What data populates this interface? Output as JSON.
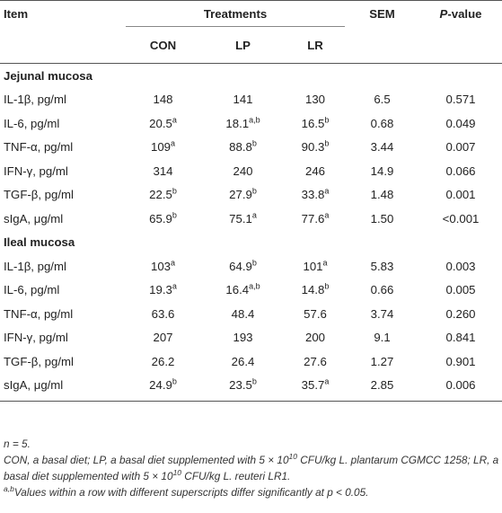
{
  "header": {
    "item": "Item",
    "treatments": "Treatments",
    "sem": "SEM",
    "p_prefix": "P",
    "p_suffix": "-value",
    "con": "CON",
    "lp": "LP",
    "lr": "LR"
  },
  "sections": [
    {
      "title": "Jejunal mucosa",
      "rows": [
        {
          "item": "IL-1β, pg/ml",
          "con": "148",
          "con_sup": "",
          "lp": "141",
          "lp_sup": "",
          "lr": "130",
          "lr_sup": "",
          "sem": "6.5",
          "p": "0.571"
        },
        {
          "item": "IL-6, pg/ml",
          "con": "20.5",
          "con_sup": "a",
          "lp": "18.1",
          "lp_sup": "a,b",
          "lr": "16.5",
          "lr_sup": "b",
          "sem": "0.68",
          "p": "0.049"
        },
        {
          "item": "TNF-α, pg/ml",
          "con": "109",
          "con_sup": "a",
          "lp": "88.8",
          "lp_sup": "b",
          "lr": "90.3",
          "lr_sup": "b",
          "sem": "3.44",
          "p": "0.007"
        },
        {
          "item": "IFN-γ, pg/ml",
          "con": "314",
          "con_sup": "",
          "lp": "240",
          "lp_sup": "",
          "lr": "246",
          "lr_sup": "",
          "sem": "14.9",
          "p": "0.066"
        },
        {
          "item": "TGF-β, pg/ml",
          "con": "22.5",
          "con_sup": "b",
          "lp": "27.9",
          "lp_sup": "b",
          "lr": "33.8",
          "lr_sup": "a",
          "sem": "1.48",
          "p": "0.001"
        },
        {
          "item": "sIgA, μg/ml",
          "con": "65.9",
          "con_sup": "b",
          "lp": "75.1",
          "lp_sup": "a",
          "lr": "77.6",
          "lr_sup": "a",
          "sem": "1.50",
          "p": "<0.001"
        }
      ]
    },
    {
      "title": "Ileal mucosa",
      "rows": [
        {
          "item": "IL-1β, pg/ml",
          "con": "103",
          "con_sup": "a",
          "lp": "64.9",
          "lp_sup": "b",
          "lr": "101",
          "lr_sup": "a",
          "sem": "5.83",
          "p": "0.003"
        },
        {
          "item": "IL-6, pg/ml",
          "con": "19.3",
          "con_sup": "a",
          "lp": "16.4",
          "lp_sup": "a,b",
          "lr": "14.8",
          "lr_sup": "b",
          "sem": "0.66",
          "p": "0.005"
        },
        {
          "item": "TNF-α, pg/ml",
          "con": "63.6",
          "con_sup": "",
          "lp": "48.4",
          "lp_sup": "",
          "lr": "57.6",
          "lr_sup": "",
          "sem": "3.74",
          "p": "0.260"
        },
        {
          "item": "IFN-γ, pg/ml",
          "con": "207",
          "con_sup": "",
          "lp": "193",
          "lp_sup": "",
          "lr": "200",
          "lr_sup": "",
          "sem": "9.1",
          "p": "0.841"
        },
        {
          "item": "TGF-β, pg/ml",
          "con": "26.2",
          "con_sup": "",
          "lp": "26.4",
          "lp_sup": "",
          "lr": "27.6",
          "lr_sup": "",
          "sem": "1.27",
          "p": "0.901"
        },
        {
          "item": "sIgA, μg/ml",
          "con": "24.9",
          "con_sup": "b",
          "lp": "23.5",
          "lp_sup": "b",
          "lr": "35.7",
          "lr_sup": "a",
          "sem": "2.85",
          "p": "0.006"
        }
      ]
    }
  ],
  "notes": {
    "n": "n = 5.",
    "abbrev_1": "CON, a basal diet; LP, a basal diet supplemented with 5 × 10",
    "abbrev_exp": "10",
    "abbrev_2": " CFU/kg L. plantarum CGMCC 1258; LR, a basal diet supplemented with 5 × 10",
    "abbrev_exp2": "10",
    "abbrev_3": " CFU/kg L. reuteri LR1.",
    "sig_sup": "a,b",
    "sig_text": "Values within a row with different superscripts differ significantly at p < 0.05."
  }
}
